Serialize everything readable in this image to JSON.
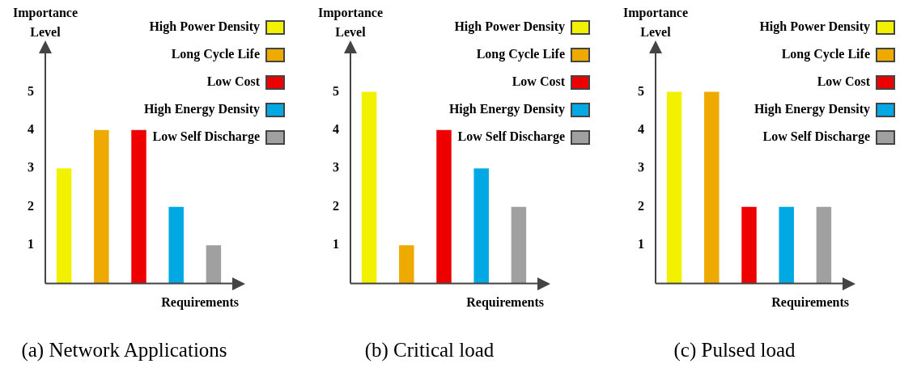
{
  "chart_data": [
    {
      "type": "bar",
      "title": "(a) Network Applications",
      "xlabel": "Requirements",
      "ylabel": "Importance Level",
      "categories": [
        null,
        null,
        null,
        null,
        null
      ],
      "ylim": [
        0,
        6
      ],
      "yticks": [
        1,
        2,
        3,
        4,
        5
      ],
      "grid": false,
      "legend": "top right",
      "series": [
        {
          "name": "High Power Density",
          "color": "#f2f200",
          "values": [
            3,
            null,
            null,
            null,
            null
          ]
        },
        {
          "name": "Long Cycle Life",
          "color": "#eeaa00",
          "values": [
            null,
            4,
            null,
            null,
            null
          ]
        },
        {
          "name": "Low Cost",
          "color": "#ee0000",
          "values": [
            null,
            null,
            4,
            null,
            null
          ]
        },
        {
          "name": "High Energy Density",
          "color": "#00a8e4",
          "values": [
            null,
            null,
            null,
            2,
            null
          ]
        },
        {
          "name": "Low Self Discharge",
          "color": "#a0a0a0",
          "values": [
            null,
            null,
            null,
            null,
            1
          ]
        }
      ]
    },
    {
      "type": "bar",
      "title": "(b) Critical load",
      "xlabel": "Requirements",
      "ylabel": "Importance Level",
      "categories": [
        null,
        null,
        null,
        null,
        null
      ],
      "ylim": [
        0,
        6
      ],
      "yticks": [
        1,
        2,
        3,
        4,
        5
      ],
      "grid": false,
      "legend": "top right",
      "series": [
        {
          "name": "High Power Density",
          "color": "#f2f200",
          "values": [
            5,
            null,
            null,
            null,
            null
          ]
        },
        {
          "name": "Long Cycle Life",
          "color": "#eeaa00",
          "values": [
            null,
            1,
            null,
            null,
            null
          ]
        },
        {
          "name": "Low Cost",
          "color": "#ee0000",
          "values": [
            null,
            null,
            4,
            null,
            null
          ]
        },
        {
          "name": "High Energy Density",
          "color": "#00a8e4",
          "values": [
            null,
            null,
            null,
            3,
            null
          ]
        },
        {
          "name": "Low Self Discharge",
          "color": "#a0a0a0",
          "values": [
            null,
            null,
            null,
            null,
            2
          ]
        }
      ]
    },
    {
      "type": "bar",
      "title": "(c) Pulsed load",
      "xlabel": "Requirements",
      "ylabel": "Importance Level",
      "categories": [
        null,
        null,
        null,
        null,
        null
      ],
      "ylim": [
        0,
        6
      ],
      "yticks": [
        1,
        2,
        3,
        4,
        5
      ],
      "grid": false,
      "legend": "top right",
      "series": [
        {
          "name": "High Power Density",
          "color": "#f2f200",
          "values": [
            5,
            null,
            null,
            null,
            null
          ]
        },
        {
          "name": "Long Cycle Life",
          "color": "#eeaa00",
          "values": [
            null,
            5,
            null,
            null,
            null
          ]
        },
        {
          "name": "Low Cost",
          "color": "#ee0000",
          "values": [
            null,
            null,
            2,
            null,
            null
          ]
        },
        {
          "name": "High Energy Density",
          "color": "#00a8e4",
          "values": [
            null,
            null,
            null,
            2,
            null
          ]
        },
        {
          "name": "Low Self Discharge",
          "color": "#a0a0a0",
          "values": [
            null,
            null,
            null,
            null,
            2
          ]
        }
      ]
    }
  ]
}
